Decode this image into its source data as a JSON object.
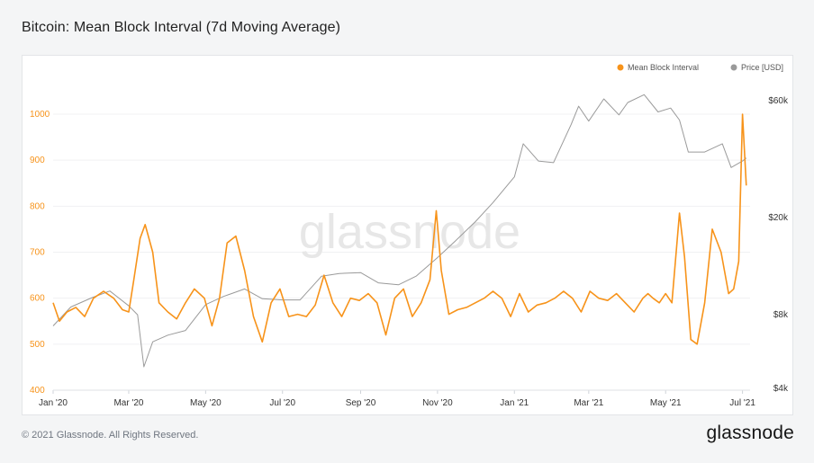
{
  "header": {
    "title": "Bitcoin: Mean Block Interval (7d Moving Average)"
  },
  "footer": {
    "copyright": "© 2021 Glassnode. All Rights Reserved.",
    "brand": "glassnode"
  },
  "watermark": "glassnode",
  "colors": {
    "interval": "#f7931a",
    "price": "#9a9a9a",
    "axis_text": "#333333"
  },
  "chart_data": {
    "type": "line",
    "title": "Bitcoin: Mean Block Interval (7d Moving Average)",
    "legend": {
      "placement": "top-right",
      "entries": [
        "Mean Block Interval",
        "Price [USD]"
      ]
    },
    "grid": true,
    "x_ticks": [
      "Jan '20",
      "Mar '20",
      "May '20",
      "Jul '20",
      "Sep '20",
      "Nov '20",
      "Jan '21",
      "Mar '21",
      "May '21",
      "Jul '21"
    ],
    "y_left": {
      "ticks": [
        "400",
        "500",
        "600",
        "700",
        "800",
        "900",
        "1000"
      ],
      "ylim": [
        400,
        1000
      ]
    },
    "y_right": {
      "scale": "log",
      "ticks": [
        "$4k",
        "$8k",
        "$20k",
        "$60k"
      ]
    },
    "x_range": [
      "2020-01-01",
      "2021-07-07"
    ],
    "series": [
      {
        "name": "Mean Block Interval",
        "axis": "left",
        "x": [
          "2020-01-01",
          "2020-01-06",
          "2020-01-12",
          "2020-01-19",
          "2020-01-26",
          "2020-02-02",
          "2020-02-10",
          "2020-02-18",
          "2020-02-25",
          "2020-03-01",
          "2020-03-05",
          "2020-03-10",
          "2020-03-14",
          "2020-03-20",
          "2020-03-25",
          "2020-04-01",
          "2020-04-08",
          "2020-04-15",
          "2020-04-22",
          "2020-04-30",
          "2020-05-06",
          "2020-05-12",
          "2020-05-18",
          "2020-05-25",
          "2020-06-01",
          "2020-06-08",
          "2020-06-15",
          "2020-06-22",
          "2020-06-29",
          "2020-07-06",
          "2020-07-13",
          "2020-07-20",
          "2020-07-27",
          "2020-08-03",
          "2020-08-10",
          "2020-08-17",
          "2020-08-24",
          "2020-08-31",
          "2020-09-07",
          "2020-09-14",
          "2020-09-21",
          "2020-09-28",
          "2020-10-05",
          "2020-10-12",
          "2020-10-19",
          "2020-10-26",
          "2020-10-31",
          "2020-11-04",
          "2020-11-10",
          "2020-11-17",
          "2020-11-24",
          "2020-12-01",
          "2020-12-08",
          "2020-12-15",
          "2020-12-22",
          "2020-12-29",
          "2021-01-05",
          "2021-01-12",
          "2021-01-19",
          "2021-01-26",
          "2021-02-02",
          "2021-02-09",
          "2021-02-16",
          "2021-02-23",
          "2021-03-02",
          "2021-03-09",
          "2021-03-16",
          "2021-03-23",
          "2021-03-30",
          "2021-04-06",
          "2021-04-13",
          "2021-04-17",
          "2021-04-21",
          "2021-04-26",
          "2021-05-01",
          "2021-05-06",
          "2021-05-12",
          "2021-05-16",
          "2021-05-21",
          "2021-05-26",
          "2021-06-01",
          "2021-06-07",
          "2021-06-14",
          "2021-06-20",
          "2021-06-24",
          "2021-06-28",
          "2021-07-01",
          "2021-07-04"
        ],
        "values": [
          590,
          550,
          570,
          580,
          560,
          600,
          615,
          600,
          575,
          570,
          640,
          730,
          760,
          700,
          590,
          570,
          555,
          590,
          620,
          600,
          540,
          600,
          720,
          735,
          660,
          560,
          505,
          590,
          620,
          560,
          565,
          560,
          585,
          650,
          590,
          560,
          600,
          595,
          610,
          590,
          520,
          600,
          620,
          560,
          590,
          640,
          790,
          660,
          565,
          575,
          580,
          590,
          600,
          615,
          600,
          560,
          610,
          570,
          585,
          590,
          600,
          615,
          600,
          570,
          615,
          600,
          595,
          610,
          590,
          570,
          600,
          610,
          600,
          590,
          610,
          590,
          785,
          690,
          510,
          500,
          590,
          750,
          700,
          610,
          620,
          680,
          1000,
          845
        ]
      },
      {
        "name": "Price [USD]",
        "axis": "right",
        "x": [
          "2020-01-01",
          "2020-01-15",
          "2020-02-01",
          "2020-02-15",
          "2020-03-01",
          "2020-03-08",
          "2020-03-13",
          "2020-03-20",
          "2020-04-01",
          "2020-04-15",
          "2020-05-01",
          "2020-05-15",
          "2020-06-01",
          "2020-06-15",
          "2020-07-01",
          "2020-07-15",
          "2020-08-01",
          "2020-08-15",
          "2020-09-01",
          "2020-09-15",
          "2020-10-01",
          "2020-10-15",
          "2020-11-01",
          "2020-11-15",
          "2020-12-01",
          "2020-12-15",
          "2021-01-01",
          "2021-01-08",
          "2021-01-20",
          "2021-02-01",
          "2021-02-15",
          "2021-02-21",
          "2021-03-01",
          "2021-03-13",
          "2021-03-25",
          "2021-04-01",
          "2021-04-14",
          "2021-04-25",
          "2021-05-05",
          "2021-05-12",
          "2021-05-19",
          "2021-06-01",
          "2021-06-15",
          "2021-06-22",
          "2021-07-01",
          "2021-07-04"
        ],
        "values": [
          7200,
          8600,
          9400,
          10000,
          8700,
          8000,
          4900,
          6200,
          6600,
          6900,
          8800,
          9500,
          10200,
          9300,
          9200,
          9200,
          11500,
          11800,
          11900,
          10800,
          10600,
          11500,
          13700,
          16000,
          19200,
          23000,
          29300,
          40000,
          34000,
          33500,
          48000,
          57000,
          49500,
          61000,
          52500,
          59000,
          63500,
          54000,
          56000,
          50000,
          37000,
          37000,
          40000,
          32000,
          34000,
          35000
        ]
      }
    ]
  }
}
